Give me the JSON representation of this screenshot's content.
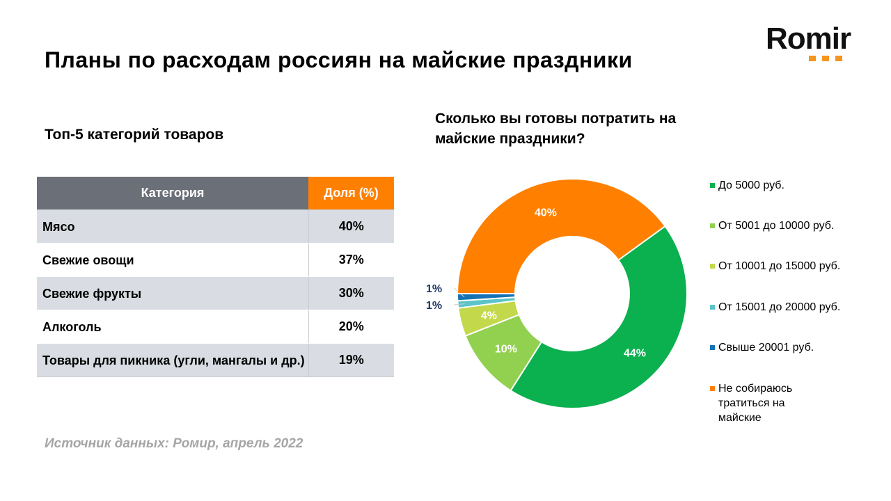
{
  "title": "Планы по расходам россиян на майские праздники",
  "logo": {
    "text": "Romir",
    "accent": "#f7941d"
  },
  "table_section": {
    "subtitle": "Топ-5 категорий товаров",
    "headers": [
      "Категория",
      "Доля (%)"
    ],
    "rows": [
      {
        "category": "Мясо",
        "share": "40%"
      },
      {
        "category": "Свежие овощи",
        "share": "37%"
      },
      {
        "category": "Свежие фрукты",
        "share": "30%"
      },
      {
        "category": "Алкоголь",
        "share": "20%"
      },
      {
        "category": "Товары для пикника (угли, мангалы и др.)",
        "share": "19%"
      }
    ]
  },
  "source": "Источник данных: Ромир, апрель 2022",
  "chart_data": {
    "type": "pie",
    "donut": true,
    "title": "Сколько вы готовы потратить на майские праздники?",
    "legend_position": "right",
    "categories": [
      "До 5000 руб.",
      "От 5001 до 10000 руб.",
      "От 10001 до 15000 руб.",
      "От 15001 до 20000 руб.",
      "Свыше 20001 руб.",
      "Не собираюсь тратиться на майские"
    ],
    "values": [
      44,
      10,
      4,
      1,
      1,
      40
    ],
    "labels": [
      "44%",
      "10%",
      "4%",
      "1%",
      "1%",
      "40%"
    ],
    "colors": [
      "#0bb04f",
      "#92d050",
      "#c3d84a",
      "#5bc4c8",
      "#1672b4",
      "#ff8000"
    ]
  }
}
